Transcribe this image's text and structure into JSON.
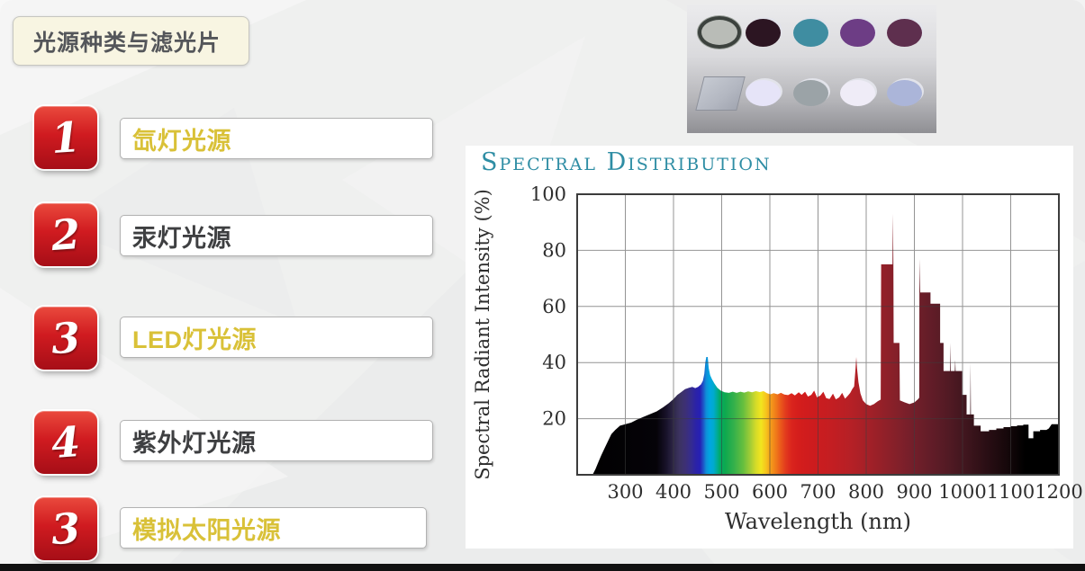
{
  "slide": {
    "title": "光源种类与滤光片",
    "items": [
      {
        "number": "1",
        "label": "氙灯光源"
      },
      {
        "number": "2",
        "label": "汞灯光源"
      },
      {
        "number": "3",
        "label": "LED灯光源"
      },
      {
        "number": "4",
        "label": "紫外灯光源"
      },
      {
        "number": "3",
        "label": "模拟太阳光源"
      }
    ],
    "colors": {
      "badge_red": "#c6151e",
      "gold_text": "#d9c138",
      "dark_text": "#3e3f41",
      "title_bg": "#f8f5e2",
      "slide_bg": "#eff0ef"
    }
  },
  "filters_photo": {
    "row1": [
      "#b9bcb7",
      "#2c1522",
      "#3f8da1",
      "#6d3d85",
      "#5e2f4e"
    ],
    "row2": [
      "#e6e4f8",
      "#9ba3a7",
      "#efecf7",
      "#abb5d9"
    ],
    "square_color": "#b7bcc6"
  },
  "chart_data": {
    "type": "area",
    "title": "Spectral Distribution",
    "title_color": "#2e8da4",
    "xlabel": "Wavelength (nm)",
    "ylabel": "Spectral Radiant Intensity (%)",
    "xlim": [
      200,
      1200
    ],
    "ylim": [
      0,
      100
    ],
    "x_ticks": [
      300,
      400,
      500,
      600,
      700,
      800,
      900,
      1000,
      1100,
      1200
    ],
    "y_ticks": [
      20,
      40,
      60,
      80,
      100
    ],
    "grid": true,
    "legend": false,
    "points": [
      [
        232,
        0
      ],
      [
        238,
        2
      ],
      [
        244,
        4.5
      ],
      [
        250,
        7
      ],
      [
        257,
        9.5
      ],
      [
        264,
        12
      ],
      [
        271,
        14.5
      ],
      [
        279,
        16
      ],
      [
        289,
        17.5
      ],
      [
        300,
        18
      ],
      [
        312,
        18.6
      ],
      [
        324,
        19.6
      ],
      [
        337,
        20.6
      ],
      [
        351,
        21.6
      ],
      [
        365,
        22.6
      ],
      [
        378,
        24
      ],
      [
        390,
        25.5
      ],
      [
        400,
        27
      ],
      [
        408,
        28.5
      ],
      [
        416,
        29.5
      ],
      [
        424,
        30.5
      ],
      [
        432,
        31
      ],
      [
        439,
        31.3
      ],
      [
        445,
        30.9
      ],
      [
        451,
        31.3
      ],
      [
        457,
        32.2
      ],
      [
        461,
        33.5
      ],
      [
        464,
        36
      ],
      [
        466,
        40
      ],
      [
        468,
        42
      ],
      [
        471,
        42
      ],
      [
        473,
        38
      ],
      [
        476,
        35.5
      ],
      [
        480,
        34
      ],
      [
        485,
        32.5
      ],
      [
        491,
        31
      ],
      [
        498,
        30
      ],
      [
        506,
        29.4
      ],
      [
        515,
        29.2
      ],
      [
        523,
        29.6
      ],
      [
        531,
        29.2
      ],
      [
        539,
        29.6
      ],
      [
        547,
        29.3
      ],
      [
        555,
        29.7
      ],
      [
        563,
        29.4
      ],
      [
        571,
        29.8
      ],
      [
        579,
        29.5
      ],
      [
        587,
        29.8
      ],
      [
        594,
        29.1
      ],
      [
        601,
        28.7
      ],
      [
        608,
        29.1
      ],
      [
        616,
        28.7
      ],
      [
        623,
        29.2
      ],
      [
        630,
        28.6
      ],
      [
        638,
        28.4
      ],
      [
        645,
        29.1
      ],
      [
        652,
        28.3
      ],
      [
        660,
        29.4
      ],
      [
        666,
        28.5
      ],
      [
        673,
        29.6
      ],
      [
        679,
        27.9
      ],
      [
        686,
        28.5
      ],
      [
        692,
        30
      ],
      [
        698,
        27.6
      ],
      [
        705,
        28.3
      ],
      [
        711,
        29.6
      ],
      [
        717,
        27.3
      ],
      [
        724,
        27
      ],
      [
        731,
        28.9
      ],
      [
        737,
        26.9
      ],
      [
        744,
        27.6
      ],
      [
        750,
        29.2
      ],
      [
        756,
        27.1
      ],
      [
        762,
        28.2
      ],
      [
        767,
        29.2
      ],
      [
        771,
        30.5
      ],
      [
        775,
        31.5
      ],
      [
        778,
        38
      ],
      [
        779.5,
        42
      ],
      [
        781,
        38
      ],
      [
        784,
        33
      ],
      [
        788,
        29
      ],
      [
        793,
        26.5
      ],
      [
        800,
        25.2
      ],
      [
        808,
        24.6
      ],
      [
        816,
        25.2
      ],
      [
        824,
        26.2
      ],
      [
        830,
        26.8
      ],
      [
        831,
        75
      ],
      [
        854.5,
        75
      ],
      [
        855.5,
        93
      ],
      [
        856.5,
        75
      ],
      [
        857,
        47
      ],
      [
        869,
        47
      ],
      [
        870,
        26.5
      ],
      [
        880,
        25.8
      ],
      [
        890,
        25.2
      ],
      [
        900,
        25.8
      ],
      [
        908,
        27
      ],
      [
        910,
        27.5
      ],
      [
        910.5,
        65
      ],
      [
        911.3,
        77
      ],
      [
        912.1,
        65
      ],
      [
        933.5,
        65
      ],
      [
        933.5,
        61
      ],
      [
        953.5,
        61
      ],
      [
        953.5,
        47
      ],
      [
        960.5,
        47
      ],
      [
        960.5,
        37
      ],
      [
        974,
        37
      ],
      [
        974.8,
        47
      ],
      [
        975.6,
        37
      ],
      [
        984,
        37
      ],
      [
        984.8,
        41
      ],
      [
        985.6,
        37
      ],
      [
        999,
        37
      ],
      [
        999,
        28.5
      ],
      [
        1008.5,
        28.5
      ],
      [
        1008.5,
        21.5
      ],
      [
        1015.8,
        21.5
      ],
      [
        1016.6,
        40
      ],
      [
        1017.4,
        21.5
      ],
      [
        1023.5,
        21.5
      ],
      [
        1023.5,
        17.5
      ],
      [
        1037.5,
        17.5
      ],
      [
        1037.5,
        15.5
      ],
      [
        1055,
        15.5
      ],
      [
        1055,
        16
      ],
      [
        1070,
        16
      ],
      [
        1070,
        16.5
      ],
      [
        1085,
        16.5
      ],
      [
        1085,
        17
      ],
      [
        1100,
        17
      ],
      [
        1100,
        17.3
      ],
      [
        1113,
        17.3
      ],
      [
        1113,
        17.6
      ],
      [
        1126,
        17.6
      ],
      [
        1126,
        17.9
      ],
      [
        1137,
        17.9
      ],
      [
        1137,
        13
      ],
      [
        1147,
        13
      ],
      [
        1147,
        15.5
      ],
      [
        1161,
        15.5
      ],
      [
        1161,
        16
      ],
      [
        1174,
        16
      ],
      [
        1179,
        16.5
      ],
      [
        1185,
        18
      ],
      [
        1200,
        18
      ]
    ],
    "spectrum_stops": [
      [
        200,
        "#000000"
      ],
      [
        365,
        "#050308"
      ],
      [
        385,
        "#18122a"
      ],
      [
        400,
        "#2e2748"
      ],
      [
        412,
        "#3c3360"
      ],
      [
        425,
        "#3d3076"
      ],
      [
        437,
        "#342b90"
      ],
      [
        447,
        "#2b22a8"
      ],
      [
        455,
        "#2520b4"
      ],
      [
        462,
        "#1e55c8"
      ],
      [
        468,
        "#0f8fd8"
      ],
      [
        475,
        "#00a6e2"
      ],
      [
        483,
        "#00aacf"
      ],
      [
        490,
        "#00ab9a"
      ],
      [
        497,
        "#00aa62"
      ],
      [
        508,
        "#0fa94e"
      ],
      [
        525,
        "#33b04b"
      ],
      [
        545,
        "#67bf3e"
      ],
      [
        560,
        "#a5cd35"
      ],
      [
        572,
        "#d8dc28"
      ],
      [
        582,
        "#f2e51e"
      ],
      [
        592,
        "#f6c51d"
      ],
      [
        602,
        "#f49c1b"
      ],
      [
        612,
        "#f07d1a"
      ],
      [
        622,
        "#ea5a1b"
      ],
      [
        633,
        "#e23a1d"
      ],
      [
        645,
        "#da241d"
      ],
      [
        660,
        "#d41d1c"
      ],
      [
        690,
        "#cd1c1e"
      ],
      [
        730,
        "#c31e22"
      ],
      [
        770,
        "#b52026"
      ],
      [
        810,
        "#a02028"
      ],
      [
        850,
        "#8b2029"
      ],
      [
        890,
        "#761f2a"
      ],
      [
        930,
        "#641d28"
      ],
      [
        970,
        "#521a24"
      ],
      [
        1010,
        "#3e151d"
      ],
      [
        1050,
        "#2a0e14"
      ],
      [
        1090,
        "#17080b"
      ],
      [
        1130,
        "#000000"
      ],
      [
        1200,
        "#000000"
      ]
    ]
  }
}
